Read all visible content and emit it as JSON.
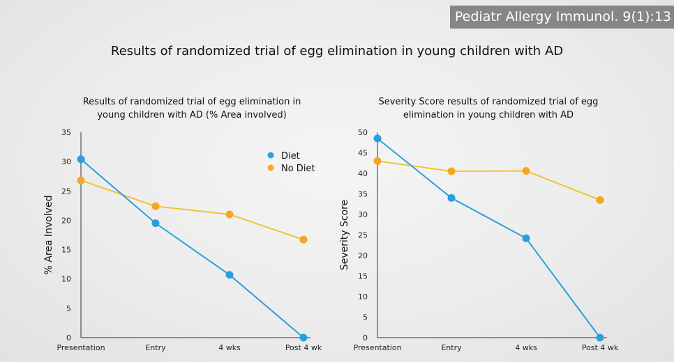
{
  "citation": "Pediatr Allergy Immunol. 9(1):13",
  "slide_title": "Results of randomized trial of egg elimination in young children with AD",
  "colors": {
    "diet": "#2a9fe0",
    "no_diet": "#f5a623",
    "no_diet_line": "#f3c233",
    "axis": "#333333"
  },
  "chart_data": [
    {
      "type": "line",
      "title": [
        "Results of randomized trial of egg elimination in",
        "young children with AD (% Area involved)"
      ],
      "xlabel": "",
      "ylabel": "% Area Involved",
      "categories": [
        "Presentation",
        "Entry",
        "4 wks",
        "Post 4 wk"
      ],
      "ylim": [
        0,
        35
      ],
      "yticks": [
        0,
        5,
        10,
        15,
        20,
        25,
        30,
        35
      ],
      "legend": "top-right",
      "series": [
        {
          "name": "Diet",
          "values": [
            30.4,
            19.5,
            10.7,
            0
          ]
        },
        {
          "name": "No Diet",
          "values": [
            26.8,
            22.4,
            21.0,
            16.7
          ]
        }
      ]
    },
    {
      "type": "line",
      "title": [
        "Severity Score results of randomized trial of egg",
        "elimination in young children with AD"
      ],
      "xlabel": "",
      "ylabel": "Severity Score",
      "categories": [
        "Presentation",
        "Entry",
        "4 wks",
        "Post 4 wk"
      ],
      "ylim": [
        0,
        50
      ],
      "yticks": [
        0,
        5,
        10,
        15,
        20,
        25,
        30,
        35,
        40,
        45,
        50
      ],
      "legend": "none",
      "series": [
        {
          "name": "Diet",
          "values": [
            48.5,
            34.0,
            24.2,
            0
          ]
        },
        {
          "name": "No Diet",
          "values": [
            43.0,
            40.5,
            40.6,
            33.5
          ]
        }
      ]
    }
  ]
}
